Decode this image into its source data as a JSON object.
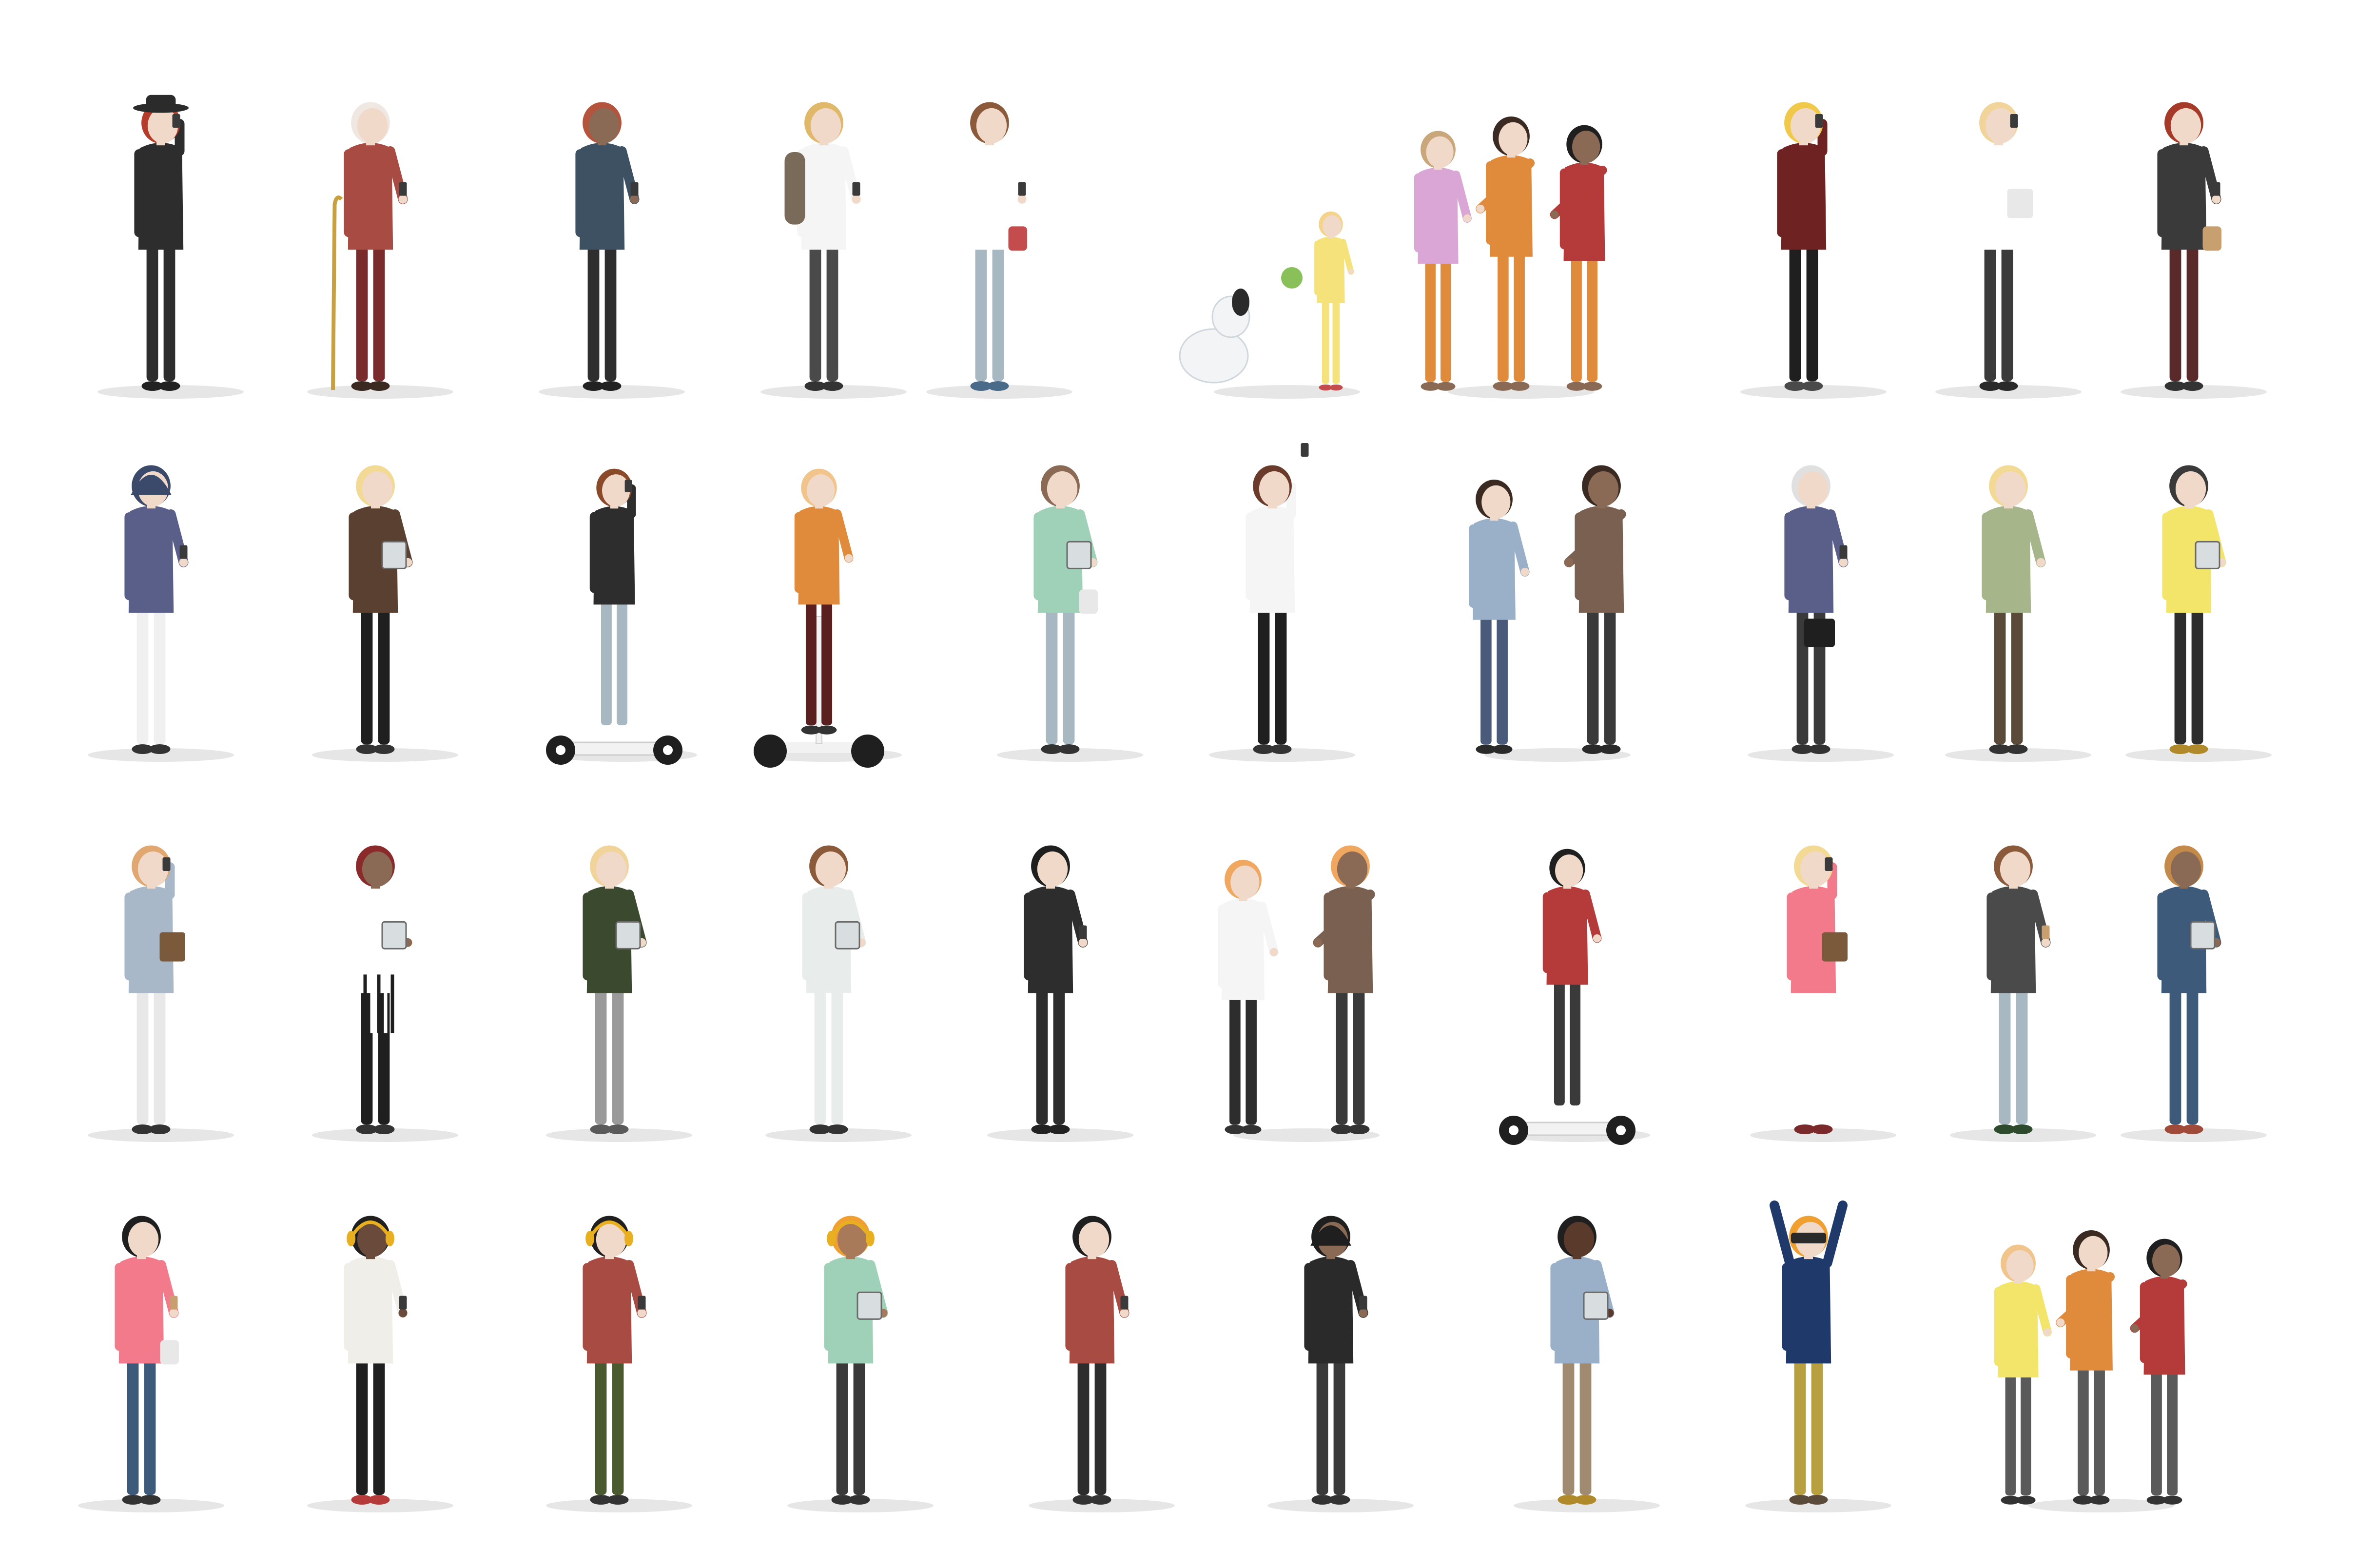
{
  "background": "#ffffff",
  "shadow_color": "#e6e6e6",
  "rows": [
    {
      "figures": [
        {
          "kind": "woman-hat-phone",
          "skin": "#f1d9c9",
          "hair": "#b53b2a",
          "top": "#2d2d2d",
          "bottom": "#2d2d2d",
          "shoe": "#222222",
          "pose": "phone-ear",
          "accessory": "hat",
          "hat": "#2b2b2b"
        },
        {
          "kind": "elderly-man-cane",
          "skin": "#f1d9c9",
          "hair": "#efe7e1",
          "top": "#a84c43",
          "bottom": "#7a2b2b",
          "shoe": "#3a2a22",
          "pose": "phone-hand",
          "accessory": "cane"
        },
        {
          "kind": "man-walking-phone",
          "skin": "#8a6a55",
          "hair": "#b5543d",
          "top": "#3d5163",
          "bottom": "#2e2e2e",
          "shoe": "#222222",
          "pose": "walk"
        },
        {
          "kind": "man-backpack-phone",
          "skin": "#f1d9c9",
          "hair": "#e0b86a",
          "top": "#f5f5f5",
          "bottom": "#4a4a4a",
          "shoe": "#333333",
          "pose": "phone-hand",
          "accessory": "backpack"
        },
        {
          "kind": "woman-polka-bag",
          "skin": "#f1d9c9",
          "hair": "#8a5a3a",
          "top": "#ffffff",
          "bottom": "#a8b8c2",
          "shoe": "#4a6a8a",
          "pose": "phone-hand",
          "accessory": "handbag",
          "bag": "#c44c4c"
        },
        {
          "kind": "dog-and-girl",
          "skin": "#f1d9c9",
          "hair": "#f3d48a",
          "top": "#f6e27a",
          "bottom": "#f6e27a",
          "shoe": "#c44c4c",
          "pose": "child",
          "accessory": "dog"
        },
        {
          "kind": "three-girls-selfie",
          "skin": "#f1d9c9",
          "hair": "#c9a77a",
          "top": "#d9a6d6",
          "bottom": "#e08a3c",
          "shoe": "#8a6a55",
          "pose": "group3"
        },
        {
          "kind": "woman-maroon-phone",
          "skin": "#f1d9c9",
          "hair": "#f0c84a",
          "top": "#6e2222",
          "bottom": "#1f1f1f",
          "shoe": "#4a4a4a",
          "pose": "phone-ear"
        },
        {
          "kind": "man-tie-papers",
          "skin": "#f1d9c9",
          "hair": "#f0d49a",
          "top": "#ffffff",
          "bottom": "#3b3b3b",
          "shoe": "#2a2a2a",
          "pose": "phone-ear",
          "accessory": "papers"
        },
        {
          "kind": "woman-bag-phone",
          "skin": "#f1d9c9",
          "hair": "#a53a28",
          "top": "#3a3a3a",
          "bottom": "#5a2a2a",
          "shoe": "#333333",
          "pose": "phone-hand",
          "accessory": "handbag",
          "bag": "#c8a070"
        }
      ]
    },
    {
      "figures": [
        {
          "kind": "woman-hijab-phone",
          "skin": "#f1d9c9",
          "hair": "#3b4a6b",
          "top": "#5a5f8a",
          "bottom": "#f0f0f0",
          "shoe": "#333333",
          "pose": "phone-hand",
          "accessory": "hijab"
        },
        {
          "kind": "woman-tablet",
          "skin": "#f1d9c9",
          "hair": "#f2d994",
          "top": "#5a4030",
          "bottom": "#1f1f1f",
          "shoe": "#333333",
          "pose": "tablet"
        },
        {
          "kind": "man-hoverboard-phone",
          "skin": "#f1d9c9",
          "hair": "#8a4a2a",
          "top": "#2d2d2d",
          "bottom": "#a8b8c2",
          "shoe": "#ffffff",
          "pose": "phone-ear",
          "accessory": "hoverboard"
        },
        {
          "kind": "woman-segway",
          "skin": "#f1d9c9",
          "hair": "#f0c48a",
          "top": "#e08a3c",
          "bottom": "#5a1f1f",
          "shoe": "#333333",
          "pose": "segway",
          "accessory": "segway"
        },
        {
          "kind": "woman-laptop-bag",
          "skin": "#f1d9c9",
          "hair": "#8a6a55",
          "top": "#9fd0b8",
          "bottom": "#a8b8c2",
          "shoe": "#333333",
          "pose": "laptop",
          "accessory": "bag-white"
        },
        {
          "kind": "woman-selfie",
          "skin": "#f1d9c9",
          "hair": "#6a3a2a",
          "top": "#f5f5f5",
          "bottom": "#1f1f1f",
          "shoe": "#333333",
          "pose": "selfie"
        },
        {
          "kind": "two-men-talking",
          "skin": "#f1d9c9",
          "hair": "#3a2a22",
          "top": "#9ab0c8",
          "bottom": "#4a5a7a",
          "shoe": "#2a2a2a",
          "pose": "pair"
        },
        {
          "kind": "old-man-briefcase",
          "skin": "#f1d9c9",
          "hair": "#e0e0e0",
          "top": "#5a5f8a",
          "bottom": "#3a3a3a",
          "shoe": "#333333",
          "pose": "phone-hand",
          "accessory": "briefcase"
        },
        {
          "kind": "woman-green-jacket",
          "skin": "#f1d9c9",
          "hair": "#f2d994",
          "top": "#a6b58a",
          "bottom": "#5a4a3a",
          "shoe": "#333333",
          "pose": "stand"
        },
        {
          "kind": "woman-yellow-tablet",
          "skin": "#f1d9c9",
          "hair": "#3a3a3a",
          "top": "#f3e46a",
          "bottom": "#2d2d2d",
          "shoe": "#b08a2a",
          "pose": "tablet"
        }
      ]
    },
    {
      "figures": [
        {
          "kind": "woman-coat-folder",
          "skin": "#f1d9c9",
          "hair": "#e0a870",
          "top": "#a8b8c8",
          "bottom": "#e8e8e8",
          "shoe": "#333333",
          "pose": "phone-ear",
          "accessory": "folder",
          "bag": "#7a5a3a"
        },
        {
          "kind": "waitress-apron",
          "skin": "#8a6a55",
          "hair": "#8a2a2a",
          "top": "#ffffff",
          "bottom": "#1f1f1f",
          "shoe": "#333333",
          "pose": "tablet",
          "accessory": "apron"
        },
        {
          "kind": "man-sweater-laptop",
          "skin": "#f1d9c9",
          "hair": "#f0d49a",
          "top": "#3b4a2e",
          "bottom": "#9a9a9a",
          "shoe": "#5a5a5a",
          "pose": "laptop"
        },
        {
          "kind": "woman-white-dress-tablet",
          "skin": "#f1d9c9",
          "hair": "#8a5a3a",
          "top": "#e8ecea",
          "bottom": "#e8ecea",
          "shoe": "#333333",
          "pose": "tablet"
        },
        {
          "kind": "man-beard-phone",
          "skin": "#f1d9c9",
          "hair": "#1f1f1f",
          "top": "#2d2d2d",
          "bottom": "#2d2d2d",
          "shoe": "#222222",
          "pose": "phone-hand"
        },
        {
          "kind": "doctor-video-call",
          "skin": "#f1d9c9",
          "hair": "#f0a860",
          "top": "#f5f5f5",
          "bottom": "#2d2d2d",
          "shoe": "#333333",
          "pose": "pair"
        },
        {
          "kind": "boy-hoverboard-cap",
          "skin": "#f1d9c9",
          "hair": "#1f1f1f",
          "top": "#b53b3b",
          "bottom": "#3a3a3a",
          "shoe": "#ffffff",
          "pose": "ride",
          "accessory": "hoverboard"
        },
        {
          "kind": "woman-pink-folder",
          "skin": "#f1d9c9",
          "hair": "#f2d994",
          "top": "#f27a8a",
          "bottom": "#ffffff",
          "shoe": "#7a2a2a",
          "pose": "phone-ear",
          "accessory": "folder",
          "bag": "#7a5a3a"
        },
        {
          "kind": "man-vest-coffee",
          "skin": "#f1d9c9",
          "hair": "#8a5a3a",
          "top": "#4a4a4a",
          "bottom": "#a8b8c2",
          "shoe": "#2d4a2d",
          "pose": "coffee"
        },
        {
          "kind": "woman-curly-tablet",
          "skin": "#8a6a55",
          "hair": "#c48a4a",
          "top": "#3d5a7a",
          "bottom": "#3d5a7a",
          "shoe": "#a04a3a",
          "pose": "tablet"
        }
      ]
    },
    {
      "figures": [
        {
          "kind": "woman-pink-coffee",
          "skin": "#f1d9c9",
          "hair": "#1f1f1f",
          "top": "#f27a8a",
          "bottom": "#3d5a7a",
          "shoe": "#333333",
          "pose": "coffee",
          "accessory": "tote"
        },
        {
          "kind": "woman-headphones-phone",
          "skin": "#6a4a3a",
          "hair": "#1f1f1f",
          "top": "#f0eee8",
          "bottom": "#1f1f1f",
          "shoe": "#b53b3b",
          "pose": "walk",
          "accessory": "headphones"
        },
        {
          "kind": "man-headphones-coffee",
          "skin": "#f1d9c9",
          "hair": "#1f1f1f",
          "top": "#a84c43",
          "bottom": "#4a5a2e",
          "shoe": "#333333",
          "pose": "walk",
          "accessory": "headphones"
        },
        {
          "kind": "girl-headphones-tablet",
          "skin": "#a87a5a",
          "hair": "#f0a030",
          "top": "#9fd0b8",
          "bottom": "#3a3a3a",
          "shoe": "#333333",
          "pose": "tablet",
          "accessory": "headphones"
        },
        {
          "kind": "woman-bun-phone",
          "skin": "#f1d9c9",
          "hair": "#1f1f1f",
          "top": "#a84c43",
          "bottom": "#2d2d2d",
          "shoe": "#333333",
          "pose": "phone-hand"
        },
        {
          "kind": "man-turban-phone",
          "skin": "#8a6a55",
          "hair": "#1f1f1f",
          "top": "#2a2a2a",
          "bottom": "#3a3a3a",
          "shoe": "#333333",
          "pose": "phone-hand",
          "accessory": "turban"
        },
        {
          "kind": "man-laptop",
          "skin": "#5a3a2a",
          "hair": "#1f1f1f",
          "top": "#9ab0c8",
          "bottom": "#a08a70",
          "shoe": "#b08a2a",
          "pose": "laptop"
        },
        {
          "kind": "man-vr-gaming",
          "skin": "#f1d9c9",
          "hair": "#f0a030",
          "top": "#1f3a6a",
          "bottom": "#b8a040",
          "shoe": "#5a4a3a",
          "pose": "cheer",
          "accessory": "vr"
        },
        {
          "kind": "group-three-tablet",
          "skin": "#f1d9c9",
          "hair": "#f0c48a",
          "top": "#f3e46a",
          "bottom": "#5a5a5a",
          "shoe": "#333333",
          "pose": "group3"
        }
      ]
    }
  ]
}
